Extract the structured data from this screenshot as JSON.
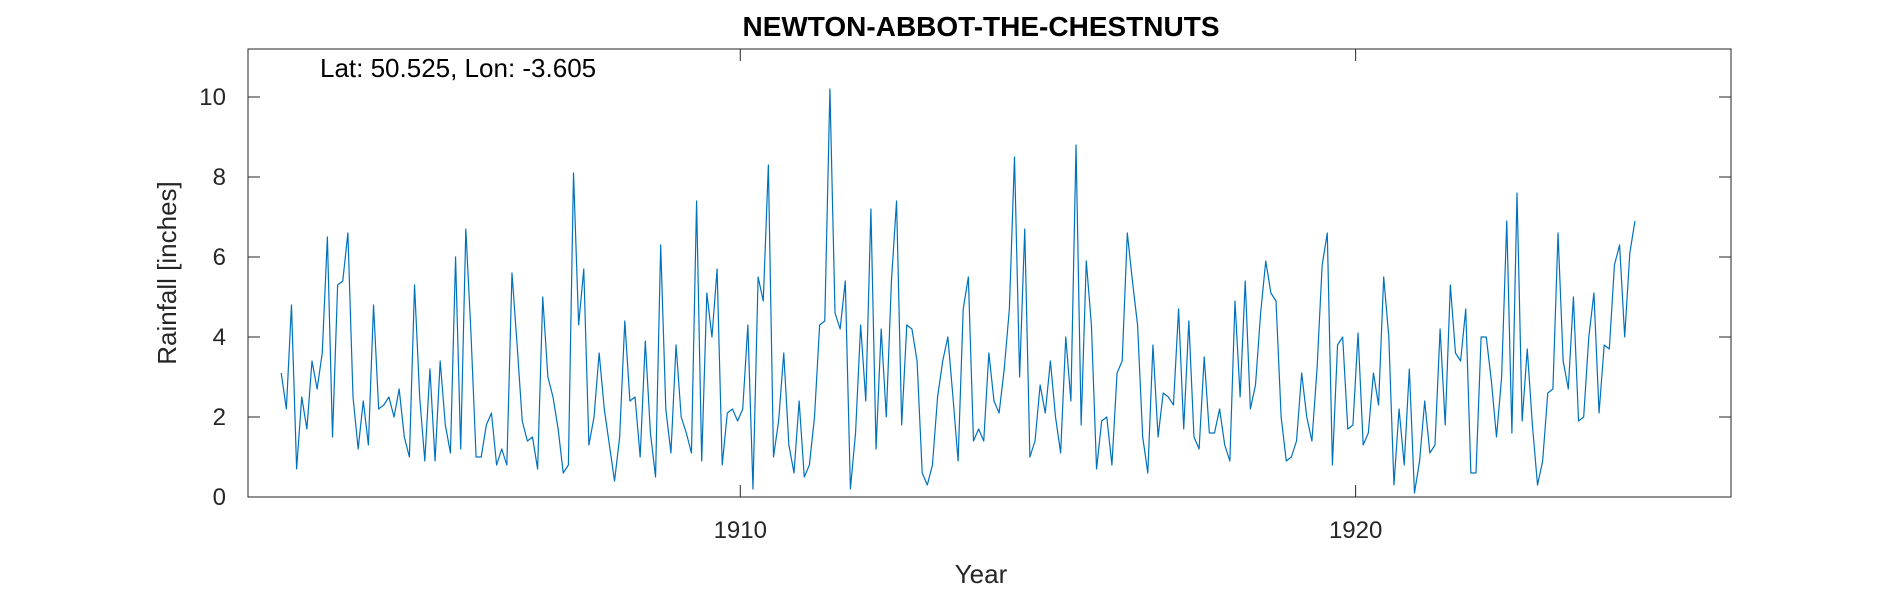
{
  "chart_data": {
    "type": "line",
    "title": "NEWTON-ABBOT-THE-CHESTNUTS",
    "annotation": "Lat: 50.525, Lon: -3.605",
    "xlabel": "Year",
    "ylabel": "Rainfall [inches]",
    "xlim": [
      1902.0,
      1926.1
    ],
    "ylim": [
      0,
      11.2
    ],
    "x_ticks": [
      1910,
      1920
    ],
    "x_tick_labels": [
      "1910",
      "1920"
    ],
    "y_ticks": [
      0,
      2,
      4,
      6,
      8,
      10
    ],
    "y_tick_labels": [
      "0",
      "2",
      "4",
      "6",
      "8",
      "10"
    ],
    "grid": false,
    "legend": "none",
    "series_color": "#0072BD",
    "x_start": 1902.54,
    "x_step": 0.08333,
    "series": [
      {
        "values": [
          3.1,
          2.2,
          4.8,
          0.7,
          2.5,
          1.7,
          3.4,
          2.7,
          3.6,
          6.5,
          1.5,
          5.3,
          5.4,
          6.6,
          2.5,
          1.2,
          2.4,
          1.3,
          4.8,
          2.2,
          2.3,
          2.5,
          2.0,
          2.7,
          1.5,
          1.0,
          5.3,
          2.5,
          0.9,
          3.2,
          0.9,
          3.4,
          1.8,
          1.1,
          6.0,
          1.2,
          6.7,
          4.1,
          1.0,
          1.0,
          1.8,
          2.1,
          0.8,
          1.2,
          0.8,
          5.6,
          3.8,
          1.9,
          1.4,
          1.5,
          0.7,
          5.0,
          3.0,
          2.5,
          1.7,
          0.6,
          0.8,
          8.1,
          4.3,
          5.7,
          1.3,
          2.0,
          3.6,
          2.2,
          1.3,
          0.4,
          1.5,
          4.4,
          2.4,
          2.5,
          1.0,
          3.9,
          1.6,
          0.5,
          6.3,
          2.2,
          1.1,
          3.8,
          2.0,
          1.6,
          1.1,
          7.4,
          0.9,
          5.1,
          4.0,
          5.7,
          0.8,
          2.1,
          2.2,
          1.9,
          2.2,
          4.3,
          0.2,
          5.5,
          4.9,
          8.3,
          1.0,
          1.9,
          3.6,
          1.3,
          0.6,
          2.4,
          0.5,
          0.8,
          2.0,
          4.3,
          4.4,
          10.2,
          4.6,
          4.2,
          5.4,
          0.2,
          1.6,
          4.3,
          2.4,
          7.2,
          1.2,
          4.2,
          2.0,
          5.4,
          7.4,
          1.8,
          4.3,
          4.2,
          3.4,
          0.6,
          0.3,
          0.8,
          2.5,
          3.4,
          4.0,
          2.5,
          0.9,
          4.7,
          5.5,
          1.4,
          1.7,
          1.4,
          3.6,
          2.4,
          2.1,
          3.2,
          4.7,
          8.5,
          3.0,
          6.7,
          1.0,
          1.4,
          2.8,
          2.1,
          3.4,
          2.0,
          1.1,
          4.0,
          2.4,
          8.8,
          1.8,
          5.9,
          4.3,
          0.7,
          1.9,
          2.0,
          0.8,
          3.1,
          3.4,
          6.6,
          5.4,
          4.3,
          1.5,
          0.6,
          3.8,
          1.5,
          2.6,
          2.5,
          2.3,
          4.7,
          1.7,
          4.4,
          1.5,
          1.2,
          3.5,
          1.6,
          1.6,
          2.2,
          1.3,
          0.9,
          4.9,
          2.5,
          5.4,
          2.2,
          2.8,
          4.6,
          5.9,
          5.1,
          4.9,
          2.0,
          0.9,
          1.0,
          1.4,
          3.1,
          2.0,
          1.4,
          3.2,
          5.8,
          6.6,
          0.8,
          3.8,
          4.0,
          1.7,
          1.8,
          4.1,
          1.3,
          1.6,
          3.1,
          2.3,
          5.5,
          4.0,
          0.3,
          2.2,
          0.8,
          3.2,
          0.1,
          0.9,
          2.4,
          1.1,
          1.3,
          4.2,
          1.8,
          5.3,
          3.6,
          3.4,
          4.7,
          0.6,
          0.6,
          4.0,
          4.0,
          2.9,
          1.5,
          3.0,
          6.9,
          1.6,
          7.6,
          1.9,
          3.7,
          1.8,
          0.3,
          0.9,
          2.6,
          2.7,
          6.6,
          3.4,
          2.7,
          5.0,
          1.9,
          2.0,
          4.0,
          5.1,
          2.1,
          3.8,
          3.7,
          5.8,
          6.3,
          4.0,
          6.1,
          6.9
        ]
      }
    ]
  }
}
